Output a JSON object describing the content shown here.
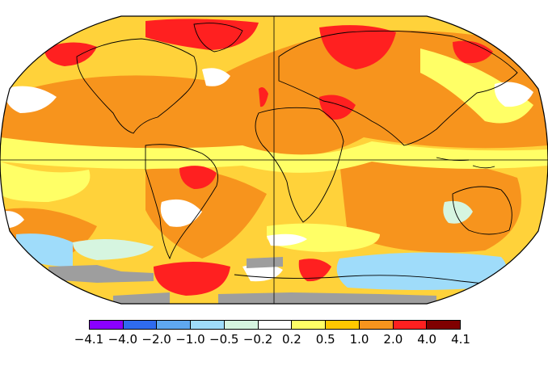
{
  "legend": {
    "bins": [
      {
        "color": "#8a00ff"
      },
      {
        "color": "#2f6bef"
      },
      {
        "color": "#5fa8f0"
      },
      {
        "color": "#9fdcfa"
      },
      {
        "color": "#d6f5e0"
      },
      {
        "color": "#ffffff"
      },
      {
        "color": "#ffff66"
      },
      {
        "color": "#ffc800"
      },
      {
        "color": "#f7941d"
      },
      {
        "color": "#ff2020"
      },
      {
        "color": "#800000"
      }
    ],
    "ticks": [
      "−4.1",
      "−4.0",
      "−2.0",
      "−1.0",
      "−0.5",
      "−0.2",
      "0.2",
      "0.5",
      "1.0",
      "2.0",
      "4.0",
      "4.1"
    ]
  },
  "map": {
    "projection": "robinson",
    "missing_data_color": "#9e9e9e",
    "ocean_base_color": "#ffd23a"
  }
}
